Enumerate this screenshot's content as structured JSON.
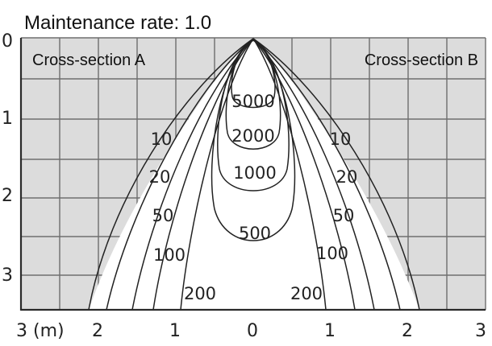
{
  "title": "Maintenance rate: 1.0",
  "section_left": "Cross-section A",
  "section_right": "Cross-section B",
  "depth_ticks": [
    "0",
    "1",
    "2",
    "3"
  ],
  "horizontal_ticks": [
    "3 (m)",
    "2",
    "1",
    "0",
    "1",
    "2",
    "3"
  ],
  "lux_labels": {
    "inner": [
      "5000",
      "2000",
      "1000",
      "500"
    ],
    "left": [
      "10",
      "20",
      "50",
      "100",
      "200"
    ],
    "right": [
      "10",
      "20",
      "50",
      "100",
      "200"
    ]
  },
  "colors": {
    "grid_fill": "#dcdcdc",
    "grid_line": "#6e6e6e",
    "curve": "#222222"
  }
}
